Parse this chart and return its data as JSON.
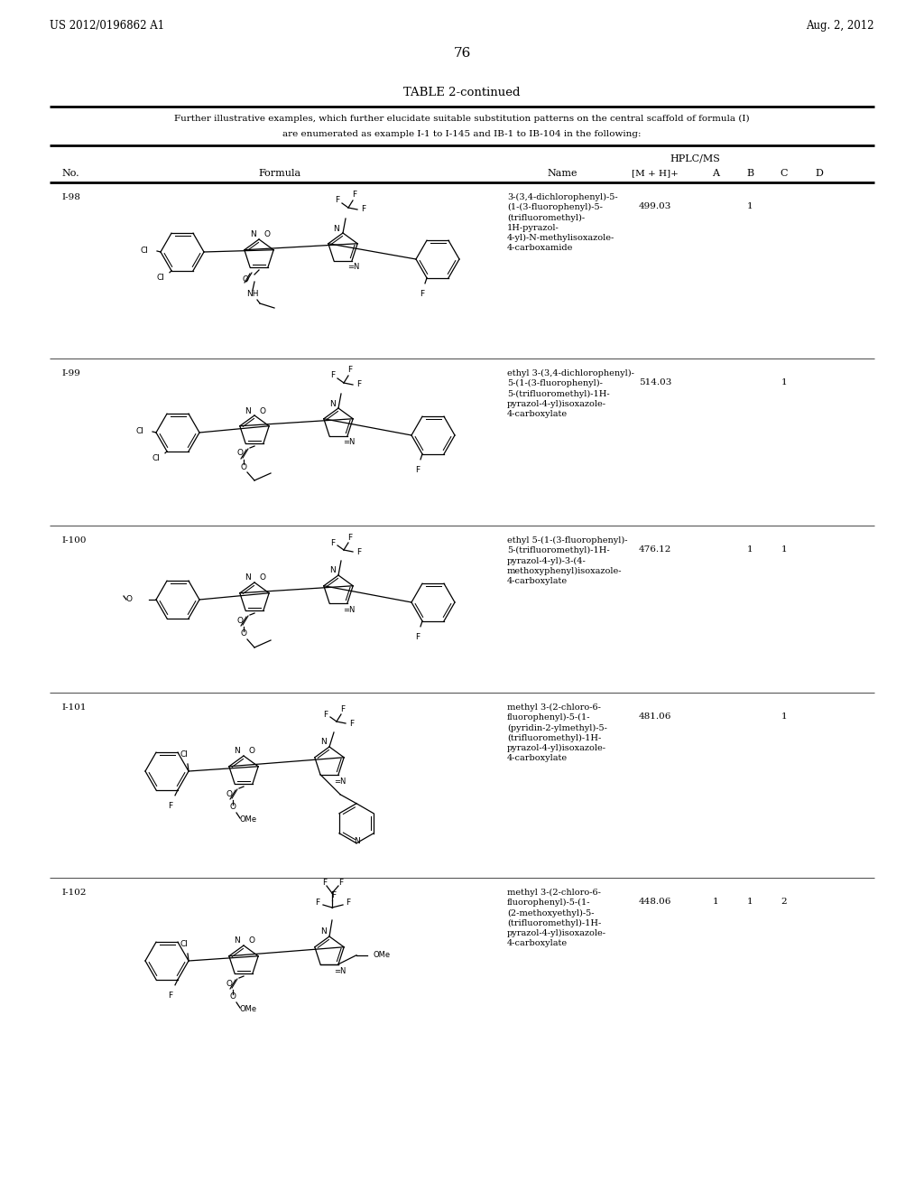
{
  "page_header_left": "US 2012/0196862 A1",
  "page_header_right": "Aug. 2, 2012",
  "page_number": "76",
  "table_title": "TABLE 2-continued",
  "table_desc1": "Further illustrative examples, which further elucidate suitable substitution patterns on the central scaffold of formula (I)",
  "table_desc2": "are enumerated as example I-1 to I-145 and IB-1 to IB-104 in the following:",
  "col_no": "No.",
  "col_formula": "Formula",
  "col_name": "Name",
  "col_hplcms": "HPLC/MS",
  "col_mh": "[M + H]+",
  "col_a": "A",
  "col_b": "B",
  "col_c": "C",
  "col_d": "D",
  "rows": [
    {
      "no": "I-98",
      "name": "3-(3,4-dichlorophenyl)-5-\n(1-(3-fluorophenyl)-5-\n(trifluoromethyl)-\n1H-pyrazol-\n4-yl)-N-methylisoxazole-\n4-carboxamide",
      "mh": "499.03",
      "a": "",
      "b": "1",
      "c": "",
      "d": ""
    },
    {
      "no": "I-99",
      "name": "ethyl 3-(3,4-dichlorophenyl)-\n5-(1-(3-fluorophenyl)-\n5-(trifluoromethyl)-1H-\npyrazol-4-yl)isoxazole-\n4-carboxylate",
      "mh": "514.03",
      "a": "",
      "b": "",
      "c": "1",
      "d": ""
    },
    {
      "no": "I-100",
      "name": "ethyl 5-(1-(3-fluorophenyl)-\n5-(trifluoromethyl)-1H-\npyrazol-4-yl)-3-(4-\nmethoxyphenyl)isoxazole-\n4-carboxylate",
      "mh": "476.12",
      "a": "",
      "b": "1",
      "c": "1",
      "d": ""
    },
    {
      "no": "I-101",
      "name": "methyl 3-(2-chloro-6-\nfluorophenyl)-5-(1-\n(pyridin-2-ylmethyl)-5-\n(trifluoromethyl)-1H-\npyrazol-4-yl)isoxazole-\n4-carboxylate",
      "mh": "481.06",
      "a": "",
      "b": "",
      "c": "1",
      "d": ""
    },
    {
      "no": "I-102",
      "name": "methyl 3-(2-chloro-6-\nfluorophenyl)-5-(1-\n(2-methoxyethyl)-5-\n(trifluoromethyl)-1H-\npyrazol-4-yl)isoxazole-\n4-carboxylate",
      "mh": "448.06",
      "a": "1",
      "b": "1",
      "c": "2",
      "d": ""
    }
  ]
}
